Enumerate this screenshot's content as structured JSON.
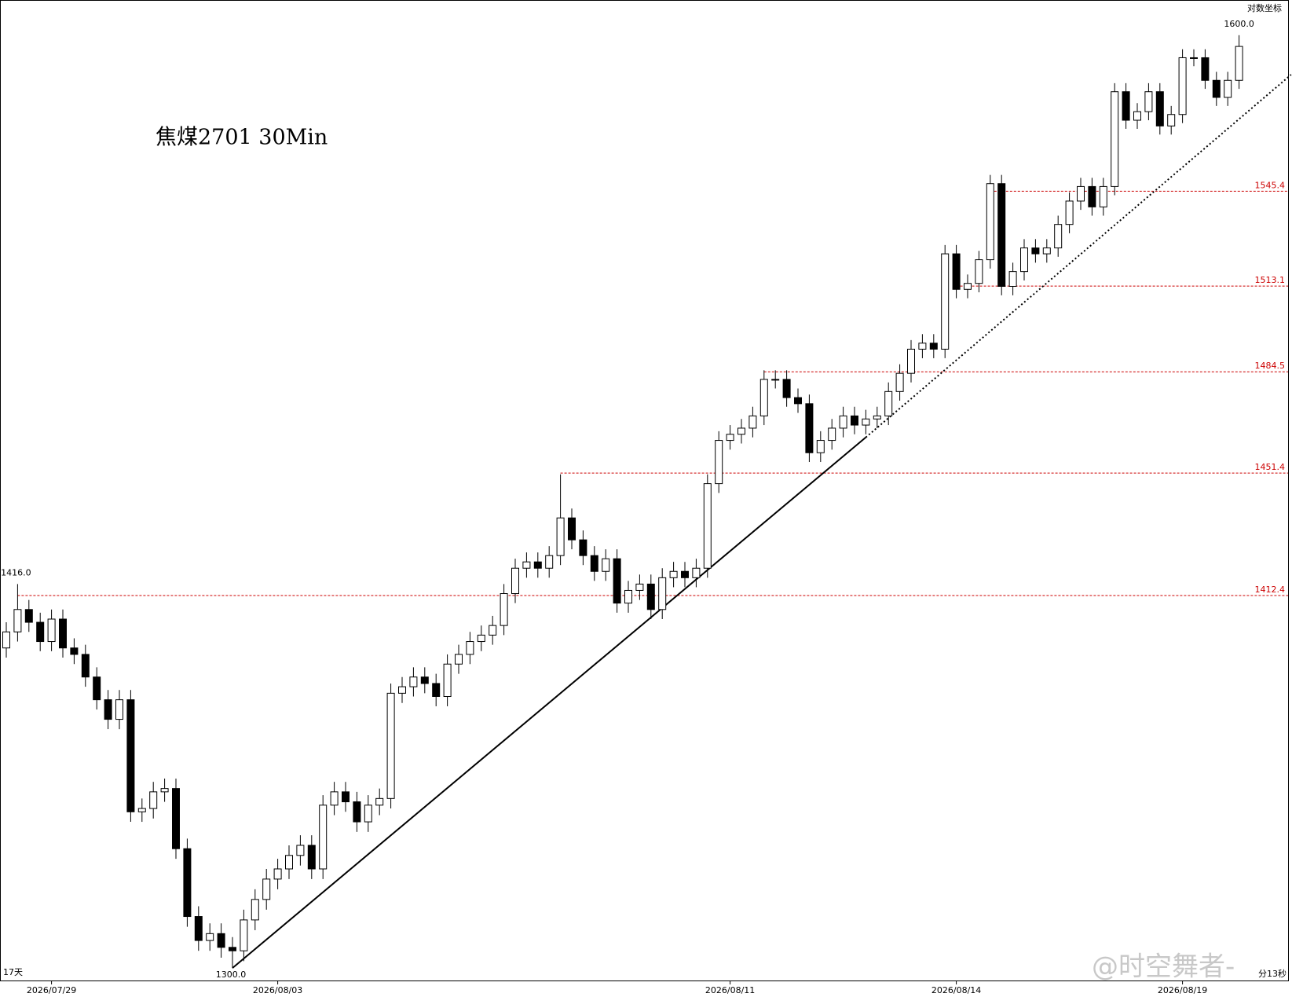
{
  "chart_data": {
    "type": "candlestick",
    "title": "焦煤2701 30Min",
    "scale_label": "对数坐标",
    "log_scale": true,
    "categories": [
      null,
      null,
      null,
      null,
      "2026/07/29",
      null,
      null,
      null,
      null,
      null,
      null,
      null,
      null,
      null,
      null,
      null,
      null,
      null,
      null,
      null,
      null,
      null,
      null,
      null,
      "2026/08/03",
      null,
      null,
      null,
      null,
      null,
      null,
      null,
      null,
      null,
      null,
      null,
      null,
      null,
      null,
      null,
      null,
      null,
      null,
      null,
      null,
      null,
      null,
      null,
      null,
      null,
      null,
      null,
      null,
      null,
      null,
      null,
      null,
      null,
      null,
      null,
      null,
      null,
      null,
      null,
      "2026/08/11",
      null,
      null,
      null,
      null,
      null,
      null,
      null,
      null,
      null,
      null,
      null,
      null,
      null,
      null,
      null,
      null,
      null,
      null,
      null,
      "2026/08/14",
      null,
      null,
      null,
      null,
      null,
      null,
      null,
      null,
      null,
      null,
      null,
      null,
      null,
      null,
      null,
      null,
      null,
      null,
      null,
      "2026/08/19",
      null,
      null,
      null,
      null,
      null
    ],
    "open": [
      1396,
      1401,
      1408,
      1404,
      1398,
      1405,
      1396,
      1394,
      1387,
      1380,
      1374,
      1380,
      1346,
      1347,
      1352,
      1353,
      1335,
      1315,
      1308,
      1310,
      1306,
      1305,
      1314,
      1320,
      1326,
      1329,
      1333,
      1336,
      1329,
      1348,
      1352,
      1349,
      1343,
      1348,
      1350,
      1382,
      1384,
      1387,
      1385,
      1381,
      1391,
      1394,
      1398,
      1400,
      1403,
      1413,
      1421,
      1423,
      1421,
      1425,
      1437,
      1430,
      1425,
      1420,
      1424,
      1410,
      1414,
      1416,
      1408,
      1418,
      1420,
      1418,
      1421,
      1448,
      1462,
      1464,
      1466,
      1470,
      1482,
      1482,
      1476,
      1474,
      1458,
      1462,
      1466,
      1470,
      1467,
      1469,
      1470,
      1478,
      1484,
      1492,
      1494,
      1492,
      1524,
      1512,
      1514,
      1522,
      1548,
      1513,
      1518,
      1526,
      1524,
      1526,
      1534,
      1542,
      1547,
      1540,
      1547,
      1580,
      1570,
      1573,
      1580,
      1568,
      1572,
      1592,
      1592,
      1584,
      1578,
      1584
    ],
    "high": [
      1404,
      1416,
      1411,
      1407,
      1408,
      1408,
      1399,
      1397,
      1390,
      1383,
      1383,
      1383,
      1350,
      1355,
      1356,
      1356,
      1338,
      1318,
      1313,
      1313,
      1309,
      1317,
      1323,
      1329,
      1332,
      1336,
      1339,
      1339,
      1351,
      1355,
      1355,
      1352,
      1351,
      1353,
      1385,
      1387,
      1390,
      1390,
      1388,
      1394,
      1397,
      1401,
      1403,
      1406,
      1416,
      1424,
      1426,
      1426,
      1428,
      1451,
      1440,
      1433,
      1428,
      1427,
      1427,
      1417,
      1419,
      1419,
      1421,
      1423,
      1423,
      1424,
      1451,
      1465,
      1467,
      1469,
      1473,
      1485,
      1485,
      1485,
      1479,
      1477,
      1465,
      1469,
      1473,
      1473,
      1472,
      1473,
      1481,
      1487,
      1495,
      1497,
      1497,
      1527,
      1527,
      1517,
      1525,
      1551,
      1551,
      1521,
      1529,
      1529,
      1529,
      1537,
      1545,
      1550,
      1550,
      1550,
      1583,
      1583,
      1576,
      1583,
      1583,
      1575,
      1595,
      1595,
      1595,
      1587,
      1587,
      1600
    ],
    "low": [
      1393,
      1398,
      1401,
      1395,
      1395,
      1393,
      1391,
      1384,
      1377,
      1371,
      1371,
      1343,
      1343,
      1344,
      1349,
      1332,
      1312,
      1305,
      1305,
      1303,
      1300,
      1302,
      1311,
      1317,
      1323,
      1326,
      1330,
      1326,
      1326,
      1345,
      1346,
      1340,
      1340,
      1345,
      1347,
      1379,
      1381,
      1382,
      1378,
      1378,
      1388,
      1391,
      1395,
      1397,
      1400,
      1410,
      1418,
      1418,
      1418,
      1422,
      1427,
      1422,
      1417,
      1417,
      1407,
      1407,
      1411,
      1405,
      1405,
      1415,
      1415,
      1415,
      1418,
      1445,
      1459,
      1461,
      1463,
      1467,
      1479,
      1473,
      1471,
      1455,
      1455,
      1459,
      1463,
      1464,
      1464,
      1466,
      1467,
      1475,
      1481,
      1489,
      1489,
      1489,
      1509,
      1509,
      1511,
      1519,
      1510,
      1510,
      1515,
      1521,
      1521,
      1523,
      1531,
      1539,
      1537,
      1537,
      1544,
      1567,
      1567,
      1570,
      1565,
      1565,
      1569,
      1589,
      1581,
      1575,
      1575,
      1581
    ],
    "close": [
      1401,
      1408,
      1404,
      1398,
      1405,
      1396,
      1394,
      1387,
      1380,
      1374,
      1380,
      1346,
      1347,
      1352,
      1353,
      1335,
      1315,
      1308,
      1310,
      1306,
      1305,
      1314,
      1320,
      1326,
      1329,
      1333,
      1336,
      1329,
      1348,
      1352,
      1349,
      1343,
      1348,
      1350,
      1382,
      1384,
      1387,
      1385,
      1381,
      1391,
      1394,
      1398,
      1400,
      1403,
      1413,
      1421,
      1423,
      1421,
      1425,
      1437,
      1430,
      1425,
      1420,
      1424,
      1410,
      1414,
      1416,
      1408,
      1418,
      1420,
      1418,
      1421,
      1448,
      1462,
      1464,
      1466,
      1470,
      1482,
      1482,
      1476,
      1474,
      1458,
      1462,
      1466,
      1470,
      1467,
      1469,
      1470,
      1478,
      1484,
      1492,
      1494,
      1492,
      1524,
      1512,
      1514,
      1522,
      1548,
      1513,
      1518,
      1526,
      1524,
      1526,
      1534,
      1542,
      1547,
      1540,
      1547,
      1580,
      1570,
      1573,
      1580,
      1568,
      1572,
      1592,
      1592,
      1584,
      1578,
      1584,
      1596
    ],
    "up_color": "#ffffff",
    "down_color": "#000000",
    "ylim": [
      1296.4,
      1612.3
    ],
    "levels": [
      1412.4,
      1451.4,
      1484.5,
      1513.1,
      1545.4
    ],
    "level_starts": [
      1,
      49,
      67,
      84,
      87
    ],
    "level_color": "#cc0000",
    "annotations": [
      {
        "index": 1,
        "value": 1416,
        "label": "1416.0"
      },
      {
        "index": 20,
        "value": 1300,
        "label": "1300.0"
      },
      {
        "index": 109,
        "value": 1600,
        "label": "1600.0"
      }
    ],
    "trendlines": [
      {
        "from": [
          20,
          1300
        ],
        "to": [
          76,
          1463
        ],
        "style": "solid"
      },
      {
        "from": [
          76,
          1463
        ],
        "to": [
          113.6,
          1586
        ],
        "style": "dotted"
      }
    ],
    "corner_left": "17天",
    "corner_right": "分13秒",
    "watermark": "@时空舞者-"
  }
}
